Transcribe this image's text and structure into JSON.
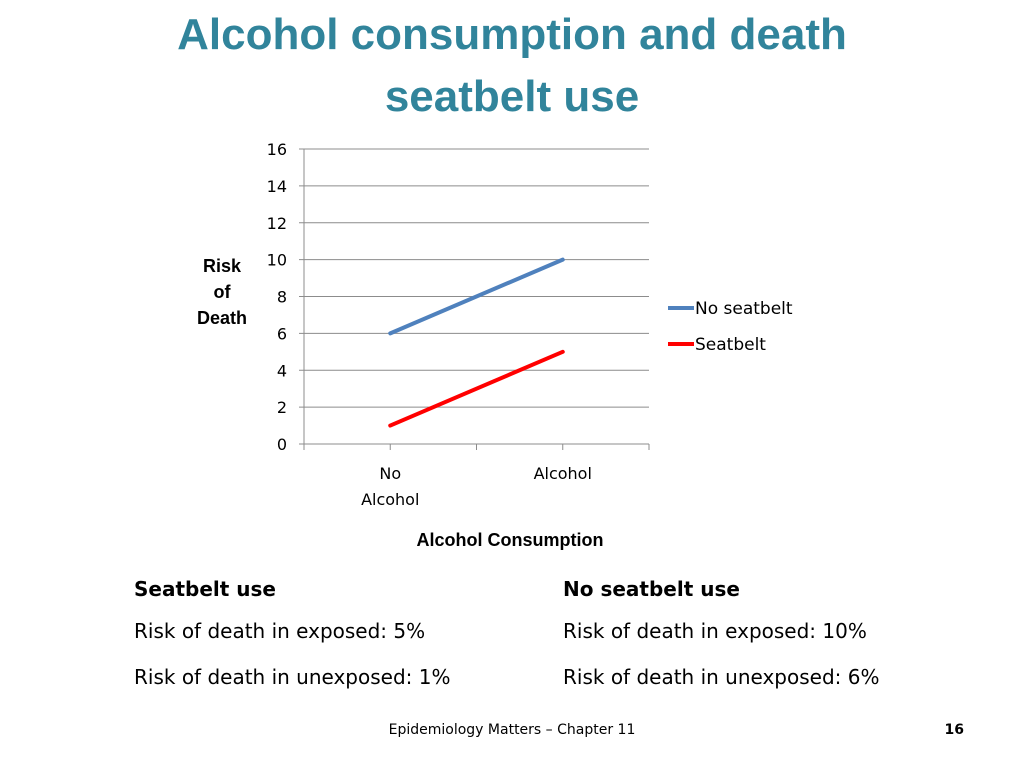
{
  "slide": {
    "title_line1": "Alcohol consumption and death",
    "title_line2": "seatbelt use",
    "footer": "Epidemiology Matters – Chapter 11",
    "page_number": "16",
    "title_color": "#31849b"
  },
  "chart_data": {
    "type": "line",
    "categories": [
      "No Alcohol",
      "Alcohol"
    ],
    "category_lines": [
      [
        "No",
        "Alcohol"
      ],
      [
        "Alcohol"
      ]
    ],
    "series": [
      {
        "name": "No seatbelt",
        "values": [
          6,
          10
        ],
        "color": "#4f81bd"
      },
      {
        "name": "Seatbelt",
        "values": [
          1,
          5
        ],
        "color": "#ff0000"
      }
    ],
    "ylabel_lines": [
      "Risk",
      "of",
      "Death"
    ],
    "xlabel": "Alcohol Consumption",
    "ylim": [
      0,
      16
    ],
    "yticks": [
      "0",
      "2",
      "4",
      "6",
      "8",
      "10",
      "12",
      "14",
      "16"
    ],
    "grid": true,
    "legend_position": "right"
  },
  "summary": {
    "left": {
      "heading": "Seatbelt use",
      "exposed": "Risk of death in exposed: 5%",
      "unexposed": "Risk of death in unexposed: 1%"
    },
    "right": {
      "heading": "No seatbelt use",
      "exposed": "Risk of death in exposed: 10%",
      "unexposed": "Risk of death in unexposed: 6%"
    }
  }
}
